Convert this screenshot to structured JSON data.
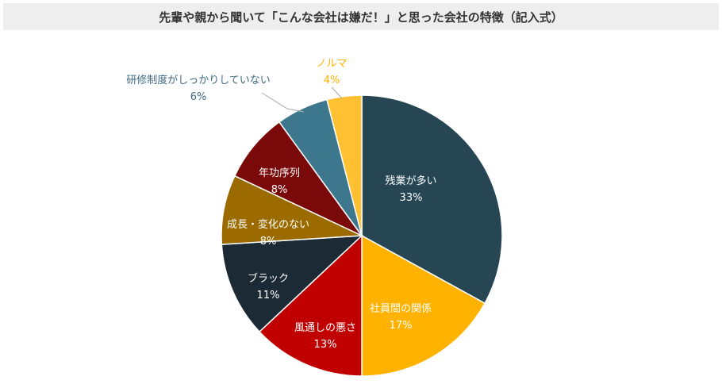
{
  "chart_data": {
    "type": "pie",
    "title": "先輩や親から聞いて「こんな会社は嫌だ！」と思った会社の特徴（記入式）",
    "slices": [
      {
        "label": "残業が多い",
        "value": 33,
        "value_text": "33%",
        "color": "#264653",
        "label_color": "#ffffff"
      },
      {
        "label": "社員間の関係",
        "value": 17,
        "value_text": "17%",
        "color": "#ffb300",
        "label_color": "#ffffff"
      },
      {
        "label": "風通しの悪さ",
        "value": 13,
        "value_text": "13%",
        "color": "#c00000",
        "label_color": "#ffffff"
      },
      {
        "label": "ブラック",
        "value": 11,
        "value_text": "11%",
        "color": "#1b2a35",
        "label_color": "#ffffff"
      },
      {
        "label": "成長・変化のない",
        "value": 8,
        "value_text": "8%",
        "color": "#9c6b00",
        "label_color": "#ffffff"
      },
      {
        "label": "年功序列",
        "value": 8,
        "value_text": "8%",
        "color": "#7a0a0a",
        "label_color": "#ffffff"
      },
      {
        "label": "研修制度がしっかりしていない",
        "value": 6,
        "value_text": "6%",
        "color": "#3d778e",
        "label_color": "#3d6a80"
      },
      {
        "label": "ノルマ",
        "value": 4,
        "value_text": "4%",
        "color": "#ffc132",
        "label_color": "#ffb300"
      }
    ]
  }
}
